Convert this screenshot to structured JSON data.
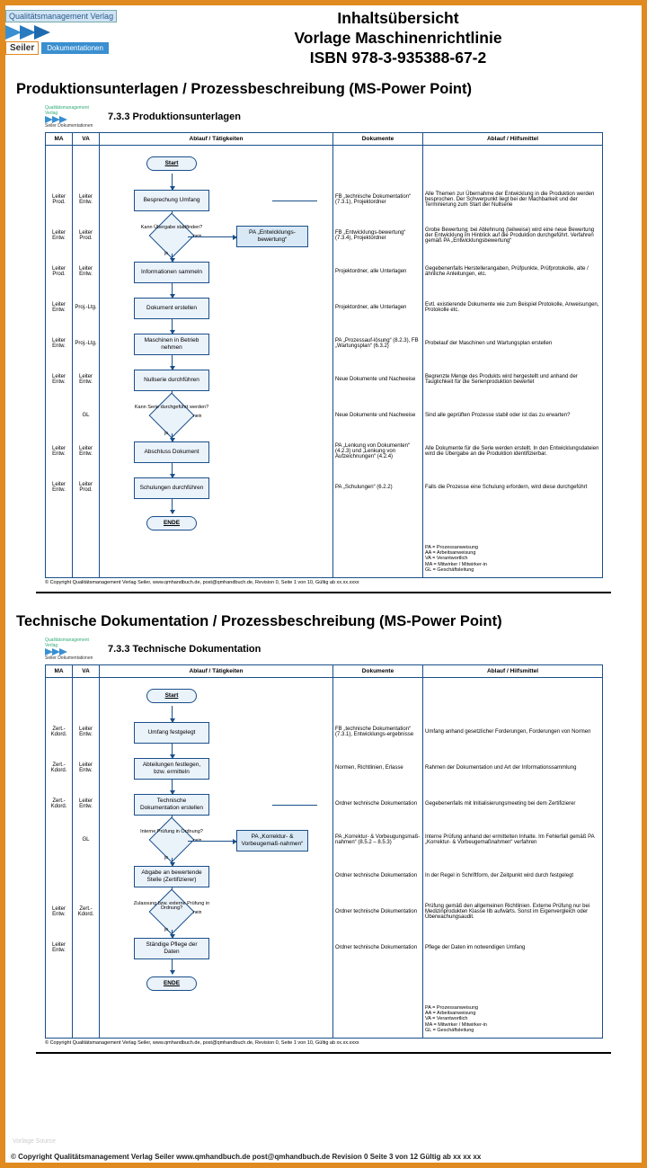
{
  "colors": {
    "border": "#e08a1f",
    "flow_border": "#1a4f8a",
    "flow_fill": "#eaf2fa",
    "chevron": "#3a8fd0"
  },
  "logo": {
    "top_label": "Qualitätsmanagement Verlag",
    "brand": "Seiler",
    "tag": "Dokumentationen"
  },
  "title": {
    "line1": "Inhaltsübersicht",
    "line2": "Vorlage Maschinenrichtlinie",
    "line3": "ISBN 978-3-935388-67-2"
  },
  "section1_title": "Produktionsunterlagen / Prozessbeschreibung (MS-Power Point)",
  "diagram1": {
    "title": "7.3.3 Produktionsunterlagen",
    "headers": {
      "ma": "MA",
      "va": "VA",
      "flow": "Ablauf / Tätigkeiten",
      "doc": "Dokumente",
      "help": "Ablauf / Hilfsmittel"
    },
    "rows": [
      {
        "ma": "",
        "va": "",
        "type": "start",
        "label": "Start",
        "doc": "",
        "help": ""
      },
      {
        "ma": "Leiter Prod.",
        "va": "Leiter Entw.",
        "type": "process",
        "label": "Besprechung Umfang",
        "doc": "FB „technische Dokumentation“ (7.3.1), Projektordner",
        "help": "Alle Themen zur Übernahme der Entwicklung in die Produktion werden besprochen. Der Schwerpunkt liegt bei der Machbarkeit und der Terminierung zum Start der Nullserie"
      },
      {
        "ma": "Leiter Entw.",
        "va": "Leiter Prod.",
        "type": "decision",
        "label": "Kann Übergabe stattfinden?",
        "sub": "PA „Entwicklungs-bewertung“",
        "doc": "FB „Entwicklungs-bewertung“ (7.3.4), Projektordner",
        "help": "Grobe Bewertung; bei Ablehnung (teilweise) wird eine neue Bewertung der Entwicklung im Hinblick auf die Produktion durchgeführt. Verfahren gemäß PA „Entwicklungsbewertung“"
      },
      {
        "ma": "Leiter Prod.",
        "va": "Leiter Entw.",
        "type": "process",
        "label": "Informationen sammeln",
        "doc": "Projektordner, alle Unterlagen",
        "help": "Gegebenenfalls Herstellerangaben, Prüfpunkte, Prüfprotokolle, alte / ähnliche Anleitungen, etc."
      },
      {
        "ma": "Leiter Entw.",
        "va": "Proj.-Ltg.",
        "type": "process",
        "label": "Dokument erstellen",
        "doc": "Projektordner, alle Unterlagen",
        "help": "Evtl. existierende Dokumente wie zum Beispiel Protokolle, Anweisungen, Protokolle etc."
      },
      {
        "ma": "Leiter Entw.",
        "va": "Proj.-Ltg.",
        "type": "process",
        "label": "Maschinen in Betrieb nehmen",
        "doc": "PA „Prozessauf-lösung“ (8.2.3), FB „Wartungsplan“ (6.3.2)",
        "help": "Probelauf der Maschinen und Wartungsplan erstellen"
      },
      {
        "ma": "Leiter Entw.",
        "va": "Leiter Entw.",
        "type": "process",
        "label": "Nullserie durchführen",
        "doc": "Neue Dokumente und Nachweise",
        "help": "Begrenzte Menge des Produkts wird hergestellt und anhand der Tauglichkeit für die Serienproduktion bewertet"
      },
      {
        "ma": "",
        "va": "GL",
        "type": "decision",
        "label": "Kann Serie durchgeführt werden?",
        "doc": "Neue Dokumente und Nachweise",
        "help": "Sind alle geprüften Prozesse stabil oder ist das zu erwarten?"
      },
      {
        "ma": "Leiter Entw.",
        "va": "Leiter Entw.",
        "type": "process",
        "label": "Abschluss Dokument",
        "doc": "PA „Lenkung von Dokumenten“ (4.2.3) und „Lenkung von Aufzeichnungen“ (4.2.4)",
        "help": "Alle Dokumente für die Serie werden erstellt. In den Entwicklungsdateien wird die Übergabe an die Produktion identifizierbar."
      },
      {
        "ma": "Leiter Entw.",
        "va": "Leiter Prod.",
        "type": "process",
        "label": "Schulungen durchführen",
        "doc": "PA „Schulungen“ (6.2.2)",
        "help": "Falls die Prozesse eine Schulung erfordern, wird diese durchgeführt"
      },
      {
        "ma": "",
        "va": "",
        "type": "end",
        "label": "ENDE",
        "doc": "",
        "help": ""
      },
      {
        "ma": "",
        "va": "",
        "type": "legend",
        "doc": "",
        "help": "PA = Prozessanweisung\nAA = Arbeitsanweisung\nVA = Verantwortlich\nMA = Mitwirker / Mitwirker-in\nGL = Geschäftsleitung"
      }
    ],
    "copyright": "© Copyright Qualitätsmanagement Verlag Seiler, www.qmhandbuch.de, post@qmhandbuch.de, Revision 0, Seite 1 von 10, Gültig ab xx.xx.xxxx"
  },
  "section2_title": "Technische Dokumentation / Prozessbeschreibung (MS-Power Point)",
  "diagram2": {
    "title": "7.3.3 Technische Dokumentation",
    "headers": {
      "ma": "MA",
      "va": "VA",
      "flow": "Ablauf / Tätigkeiten",
      "doc": "Dokumente",
      "help": "Ablauf / Hilfsmittel"
    },
    "rows": [
      {
        "ma": "",
        "va": "",
        "type": "start",
        "label": "Start",
        "doc": "",
        "help": ""
      },
      {
        "ma": "Zert.-Kdord.",
        "va": "Leiter Entw.",
        "type": "process",
        "label": "Umfang festgelegt",
        "doc": "FB „technische Dokumentation“ (7.3.1), Entwicklungs-ergebnisse",
        "help": "Umfang anhand gesetzlicher Forderungen, Forderungen von Normen"
      },
      {
        "ma": "Zert.-Kdord.",
        "va": "Leiter Entw.",
        "type": "process",
        "label": "Abteilungen festlegen, bzw. ermitteln",
        "doc": "Normen, Richtlinien, Erlasse",
        "help": "Rahmen der Dokumentation und Art der Informationssammlung"
      },
      {
        "ma": "Zert.-Kdord.",
        "va": "Leiter Entw.",
        "type": "process",
        "label": "Technische Dokumentation erstellen",
        "doc": "Ordner technische Dokumentation",
        "help": "Gegebenenfalls mit Initialisierungsmeeting bei dem Zertifizierer"
      },
      {
        "ma": "",
        "va": "GL",
        "type": "decision",
        "label": "Interne Prüfung in Ordnung?",
        "sub": "PA „Korrektur- & Vorbeugemaß-nahmen“",
        "doc": "PA „Korrektur- & Vorbeugungsmaß-nahmen“ (8.5.2 – 8.5.3)",
        "help": "Interne Prüfung anhand der ermittelten Inhalte. Im Fehlerfall gemäß PA „Korrektur- & Vorbeugemaßnahmen“ verfahren"
      },
      {
        "ma": "",
        "va": "",
        "type": "process",
        "label": "Abgabe an bewertende Stelle (Zertifizierer)",
        "doc": "Ordner technische Dokumentation",
        "help": "In der Regel in Schriftform, der Zeitpunkt wird durch festgelegt"
      },
      {
        "ma": "Leiter Entw.",
        "va": "Zert.-Kdord.",
        "type": "decision",
        "label": "Zulassung bzw. externe Prüfung in Ordnung?",
        "doc": "Ordner technische Dokumentation",
        "help": "Prüfung gemäß den allgemeinen Richtlinien. Externe Prüfung nur bei Medizinprodukten Klasse IIb aufwärts. Sonst im Eigenvergleich oder Überwachungsaudit."
      },
      {
        "ma": "Leiter Entw.",
        "va": "",
        "type": "process",
        "label": "Ständige Pflege der Daten",
        "doc": "Ordner technische Dokumentation",
        "help": "Pflege der Daten im notwendigen Umfang"
      },
      {
        "ma": "",
        "va": "",
        "type": "end",
        "label": "ENDE",
        "doc": "",
        "help": ""
      },
      {
        "ma": "",
        "va": "",
        "type": "legend",
        "doc": "",
        "help": "PA = Prozessanweisung\nAA = Arbeitsanweisung\nVA = Verantwortlich\nMA = Mitwirker / Mitwirker-in\nGL = Geschäftsleitung"
      }
    ],
    "copyright": "© Copyright Qualitätsmanagement Verlag Seiler, www.qmhandbuch.de, post@qmhandbuch.de, Revision 0, Seite 1 von 10, Gültig ab xx.xx.xxxx"
  },
  "credit": "Vorlage Source",
  "footer": "© Copyright Qualitätsmanagement Verlag Seiler  www.qmhandbuch.de  post@qmhandbuch.de  Revision 0   Seite 3 von 12  Gültig ab xx xx xx"
}
